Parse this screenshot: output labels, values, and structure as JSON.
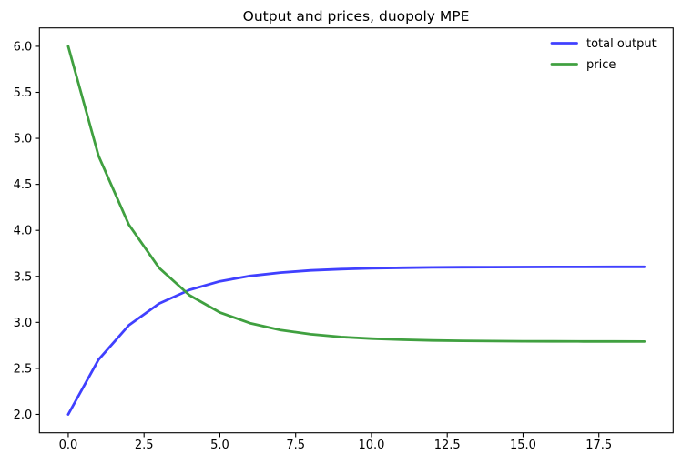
{
  "figure": {
    "title": "Output and prices, duopoly MPE",
    "background": "#ffffff",
    "text_color": "#000000",
    "spine_color": "#000000"
  },
  "legend": {
    "position": "upper-right",
    "frame": false,
    "items": [
      {
        "label": "total output",
        "color": "#4040ff"
      },
      {
        "label": "price",
        "color": "#40a040"
      }
    ]
  },
  "chart_data": {
    "type": "line",
    "title": "Output and prices, duopoly MPE",
    "xlabel": "",
    "ylabel": "",
    "grid": false,
    "legend_position": "upper right",
    "line_width_pt": 2,
    "x": [
      0,
      1,
      2,
      3,
      4,
      5,
      6,
      7,
      8,
      9,
      10,
      11,
      12,
      13,
      14,
      15,
      16,
      17,
      18,
      19
    ],
    "series": [
      {
        "name": "total output",
        "color": "#4040ff",
        "values": [
          2.0,
          2.595,
          2.969,
          3.205,
          3.353,
          3.446,
          3.505,
          3.541,
          3.565,
          3.579,
          3.588,
          3.594,
          3.598,
          3.6,
          3.601,
          3.602,
          3.603,
          3.603,
          3.604,
          3.604
        ]
      },
      {
        "name": "price",
        "color": "#40a040",
        "values": [
          6.0,
          4.81,
          4.062,
          3.591,
          3.295,
          3.108,
          2.991,
          2.917,
          2.871,
          2.841,
          2.823,
          2.812,
          2.804,
          2.8,
          2.797,
          2.795,
          2.794,
          2.793,
          2.793,
          2.792
        ]
      }
    ],
    "xlim": [
      -0.95,
      19.95
    ],
    "ylim": [
      1.8,
      6.2
    ],
    "xticks": {
      "values": [
        0,
        2.5,
        5,
        7.5,
        10,
        12.5,
        15,
        17.5
      ],
      "labels": [
        "0.0",
        "2.5",
        "5.0",
        "7.5",
        "10.0",
        "12.5",
        "15.0",
        "17.5"
      ]
    },
    "yticks": {
      "values": [
        2.0,
        2.5,
        3.0,
        3.5,
        4.0,
        4.5,
        5.0,
        5.5,
        6.0
      ],
      "labels": [
        "2.0",
        "2.5",
        "3.0",
        "3.5",
        "4.0",
        "4.5",
        "5.0",
        "5.5",
        "6.0"
      ]
    }
  }
}
